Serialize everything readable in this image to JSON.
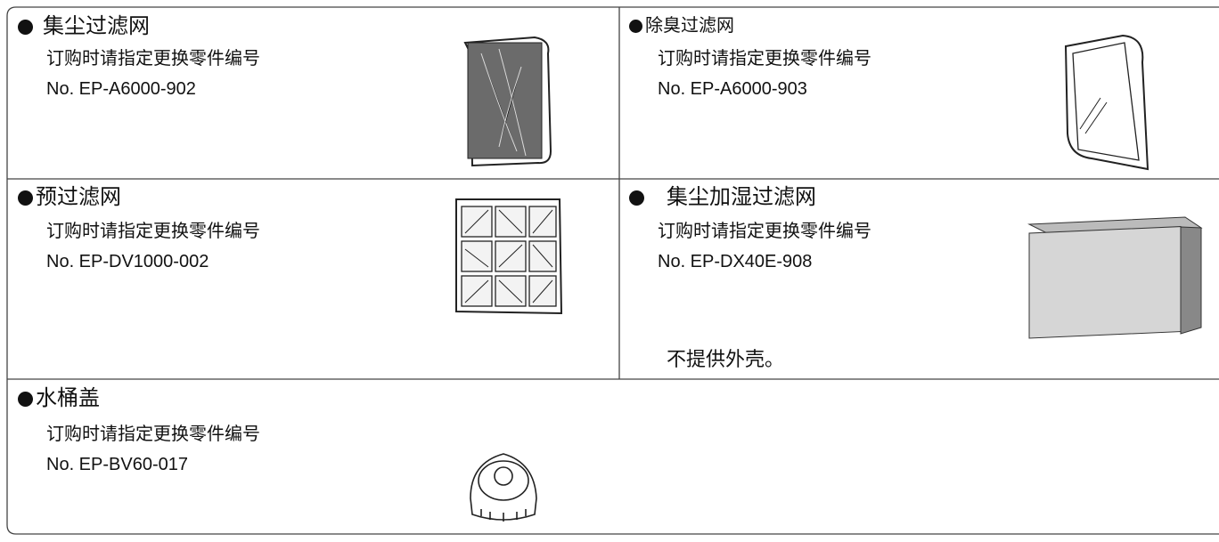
{
  "cells": [
    {
      "title": "集尘过滤网",
      "instruction": "订购时请指定更换零件编号",
      "part_number": "No. EP-A6000-902"
    },
    {
      "title": "除臭过滤网",
      "instruction": "订购时请指定更换零件编号",
      "part_number": "No. EP-A6000-903"
    },
    {
      "title": "预过滤网",
      "instruction": "订购时请指定更换零件编号",
      "part_number": "No. EP-DV1000-002"
    },
    {
      "title": "集尘加湿过滤网",
      "instruction": "订购时请指定更换零件编号",
      "part_number": "No. EP-DX40E-908",
      "note": "不提供外壳。"
    },
    {
      "title": "水桶盖",
      "instruction": "订购时请指定更换零件编号",
      "part_number": "No. EP-BV60-017"
    }
  ]
}
